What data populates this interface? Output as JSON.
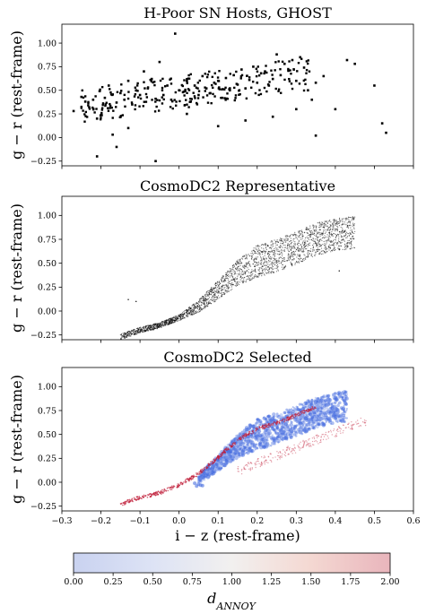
{
  "chart_data": [
    {
      "type": "scatter",
      "title": "H-Poor SN Hosts, GHOST",
      "xlabel": "",
      "ylabel": "g − r (rest-frame)",
      "xlim": [
        -0.3,
        0.6
      ],
      "ylim": [
        -0.3,
        1.2
      ],
      "xticks": [
        -0.3,
        -0.2,
        -0.1,
        0.0,
        0.1,
        0.2,
        0.3,
        0.4,
        0.5,
        0.6
      ],
      "yticks": [
        -0.25,
        0.0,
        0.25,
        0.5,
        0.75,
        1.0
      ],
      "marker_color": "#000000",
      "series": [
        {
          "x": [
            -0.27,
            -0.25,
            -0.24,
            -0.23,
            -0.22,
            -0.21,
            -0.19,
            -0.18,
            -0.17,
            -0.16,
            -0.15,
            -0.14,
            -0.13,
            -0.12,
            -0.11,
            -0.1,
            -0.09,
            -0.08,
            -0.07,
            -0.06,
            -0.05,
            -0.04,
            -0.03,
            -0.02,
            -0.01,
            0.0,
            0.01,
            0.02,
            0.03,
            0.04,
            0.05,
            0.06,
            0.07,
            0.08,
            0.09,
            0.1,
            0.11,
            0.12,
            0.13,
            0.14,
            0.15,
            0.16,
            0.17,
            0.18,
            0.19,
            0.2,
            0.21,
            0.22,
            0.23,
            0.24,
            0.25,
            0.26,
            0.27,
            0.28,
            0.29,
            0.3,
            0.31,
            0.32,
            0.33,
            0.34,
            0.35,
            0.37,
            0.4,
            0.43,
            0.45,
            0.5,
            0.52,
            0.53,
            -0.21,
            -0.16,
            -0.13,
            -0.06,
            0.02,
            0.1,
            0.17,
            0.24,
            0.3,
            0.35
          ],
          "y": [
            0.28,
            0.43,
            0.38,
            0.32,
            0.4,
            -0.2,
            0.42,
            0.55,
            0.03,
            0.37,
            0.47,
            0.4,
            0.6,
            0.35,
            0.5,
            0.45,
            0.7,
            0.52,
            0.62,
            0.41,
            0.8,
            0.45,
            0.55,
            0.4,
            1.1,
            0.5,
            0.48,
            0.6,
            0.38,
            0.55,
            0.45,
            0.65,
            0.52,
            0.47,
            0.58,
            0.6,
            0.42,
            0.63,
            0.5,
            0.66,
            0.56,
            0.72,
            0.52,
            0.61,
            0.75,
            0.58,
            0.68,
            0.7,
            0.55,
            0.62,
            0.88,
            0.66,
            0.78,
            0.71,
            0.82,
            0.6,
            0.85,
            0.74,
            0.5,
            0.4,
            0.58,
            0.65,
            0.3,
            0.82,
            0.78,
            0.55,
            0.15,
            0.05,
            0.2,
            -0.1,
            0.1,
            -0.25,
            0.25,
            0.12,
            0.18,
            0.22,
            0.3,
            0.02
          ]
        }
      ]
    },
    {
      "type": "scatter",
      "title": "CosmoDC2 Representative",
      "xlabel": "",
      "ylabel": "g − r (rest-frame)",
      "xlim": [
        -0.3,
        0.6
      ],
      "ylim": [
        -0.3,
        1.2
      ],
      "xticks": [
        -0.3,
        -0.2,
        -0.1,
        0.0,
        0.1,
        0.2,
        0.3,
        0.4,
        0.5,
        0.6
      ],
      "yticks": [
        -0.25,
        0.0,
        0.25,
        0.5,
        0.75,
        1.0
      ],
      "marker_color": "#000000",
      "locus": {
        "x": [
          -0.15,
          -0.1,
          -0.05,
          0.0,
          0.05,
          0.1,
          0.15,
          0.2,
          0.25,
          0.3,
          0.35,
          0.4,
          0.45
        ],
        "y": [
          -0.27,
          -0.2,
          -0.15,
          -0.07,
          0.05,
          0.22,
          0.4,
          0.52,
          0.58,
          0.66,
          0.75,
          0.8,
          0.82
        ]
      }
    },
    {
      "type": "scatter",
      "title": "CosmoDC2 Selected",
      "xlabel": "i − z (rest-frame)",
      "ylabel": "g − r (rest-frame)",
      "xlim": [
        -0.3,
        0.6
      ],
      "ylim": [
        -0.3,
        1.2
      ],
      "xticks": [
        -0.3,
        -0.2,
        -0.1,
        0.0,
        0.1,
        0.2,
        0.3,
        0.4,
        0.5,
        0.6
      ],
      "xtick_labels": [
        "−0.3",
        "−0.2",
        "−0.1",
        "0.0",
        "0.1",
        "0.2",
        "0.3",
        "0.4",
        "0.5",
        "0.6"
      ],
      "yticks": [
        -0.25,
        0.0,
        0.25,
        0.5,
        0.75,
        1.0
      ],
      "color_by": "d_ANNOY",
      "colormap": "coolwarm",
      "locus": {
        "x": [
          -0.15,
          -0.1,
          -0.05,
          0.0,
          0.05,
          0.1,
          0.15,
          0.2,
          0.25,
          0.3,
          0.35,
          0.4,
          0.45
        ],
        "y": [
          -0.27,
          -0.2,
          -0.15,
          -0.07,
          0.05,
          0.22,
          0.4,
          0.52,
          0.58,
          0.66,
          0.75,
          0.8,
          0.82
        ]
      }
    }
  ],
  "tick_labels_y": [
    "−0.25",
    "0.00",
    "0.25",
    "0.50",
    "0.75",
    "1.00"
  ],
  "colorbar": {
    "label": "d",
    "label_sub": "ANNOY",
    "range": [
      0.0,
      2.0
    ],
    "ticks": [
      "0.00",
      "0.25",
      "0.50",
      "0.75",
      "1.00",
      "1.25",
      "1.50",
      "1.75",
      "2.00"
    ],
    "colors": [
      "#c9d2f0",
      "#e2e6f4",
      "#f1efef",
      "#f4dcd6",
      "#e9b7bd"
    ]
  }
}
